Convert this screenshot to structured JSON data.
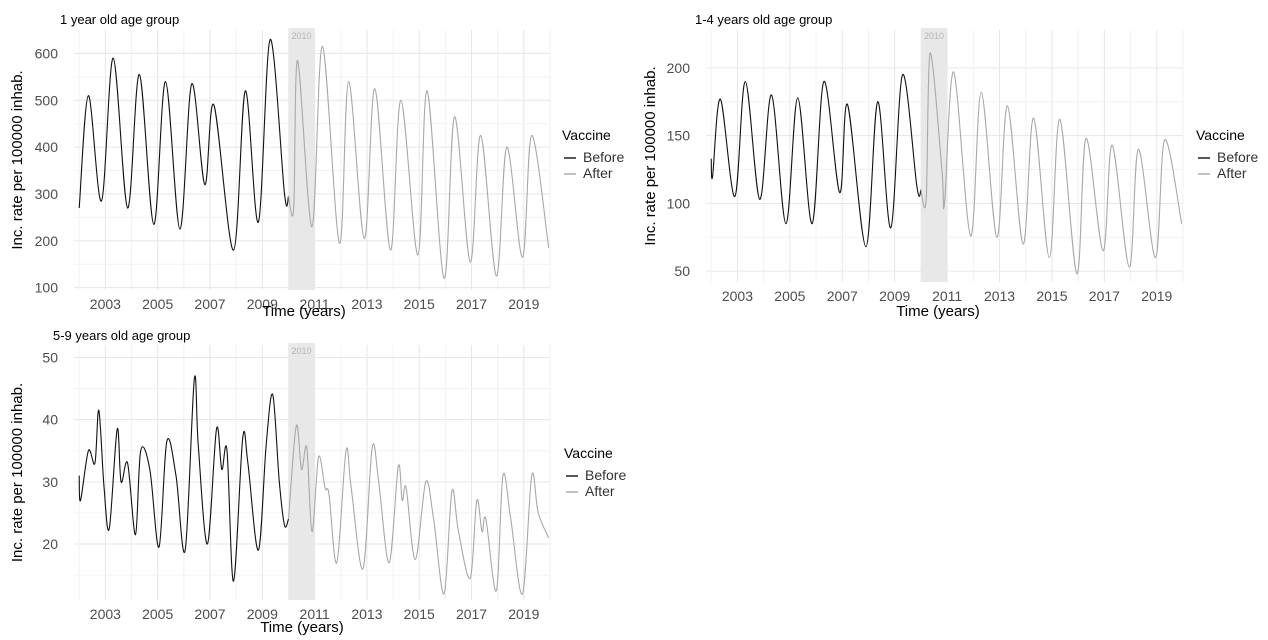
{
  "figure": {
    "panels": [
      {
        "title": "1 year old age group"
      },
      {
        "title": "1-4 years old age group"
      },
      {
        "title": "5-9 years old age group"
      }
    ]
  },
  "chart_data": [
    {
      "type": "line",
      "title": "1 year old age group",
      "xlabel": "Time (years)",
      "ylabel": "Inc. rate per 100000 inhab.",
      "x_ticks": [
        "2003",
        "2005",
        "2007",
        "2009",
        "2011",
        "2013",
        "2015",
        "2017",
        "2019"
      ],
      "y_ticks": [
        100,
        200,
        300,
        400,
        500,
        600
      ],
      "xlim": [
        2001.8,
        2020
      ],
      "ylim": [
        95,
        650
      ],
      "legend": {
        "title": "Vaccine",
        "entries": [
          "Before",
          "After"
        ],
        "position": "right"
      },
      "annotation": {
        "label": "2010",
        "x_from": 2010.0,
        "x_to": 2011.0
      },
      "grid": true,
      "series": [
        {
          "name": "Before",
          "color": "#111111",
          "peaks": [
            [
              2002,
              270
            ],
            [
              2002.35,
              510
            ],
            [
              2002.85,
              285
            ],
            [
              2003.3,
              590
            ],
            [
              2003.85,
              270
            ],
            [
              2004.3,
              555
            ],
            [
              2004.85,
              235
            ],
            [
              2005.3,
              540
            ],
            [
              2005.85,
              225
            ],
            [
              2006.3,
              535
            ],
            [
              2006.8,
              320
            ],
            [
              2007.15,
              490
            ],
            [
              2007.9,
              180
            ],
            [
              2008.35,
              520
            ],
            [
              2008.85,
              240
            ],
            [
              2009.3,
              630
            ],
            [
              2009.85,
              300
            ],
            [
              2010.0,
              295
            ]
          ]
        },
        {
          "name": "After",
          "color": "#a8a8a8",
          "peaks": [
            [
              2010.0,
              295
            ],
            [
              2010.2,
              270
            ],
            [
              2010.35,
              585
            ],
            [
              2010.9,
              230
            ],
            [
              2011.3,
              615
            ],
            [
              2011.95,
              195
            ],
            [
              2012.3,
              540
            ],
            [
              2012.9,
              205
            ],
            [
              2013.3,
              525
            ],
            [
              2013.9,
              180
            ],
            [
              2014.3,
              500
            ],
            [
              2014.95,
              170
            ],
            [
              2015.3,
              520
            ],
            [
              2015.95,
              120
            ],
            [
              2016.35,
              465
            ],
            [
              2016.95,
              155
            ],
            [
              2017.35,
              425
            ],
            [
              2017.95,
              125
            ],
            [
              2018.35,
              400
            ],
            [
              2018.95,
              165
            ],
            [
              2019.3,
              425
            ],
            [
              2019.95,
              185
            ]
          ]
        }
      ]
    },
    {
      "type": "line",
      "title": "1-4 years old age group",
      "xlabel": "Time (years)",
      "ylabel": "Inc. rate per 100000 inhab.",
      "x_ticks": [
        "2003",
        "2005",
        "2007",
        "2009",
        "2011",
        "2013",
        "2015",
        "2017",
        "2019"
      ],
      "y_ticks": [
        50,
        100,
        150,
        200
      ],
      "xlim": [
        2001.8,
        2020
      ],
      "ylim": [
        42,
        228
      ],
      "legend": {
        "title": "Vaccine",
        "entries": [
          "Before",
          "After"
        ],
        "position": "right"
      },
      "annotation": {
        "label": "2010",
        "x_from": 2010.0,
        "x_to": 2011.0
      },
      "grid": true,
      "series": [
        {
          "name": "Before",
          "color": "#111111",
          "peaks": [
            [
              2002,
              133
            ],
            [
              2002.05,
              120
            ],
            [
              2002.35,
              177
            ],
            [
              2002.9,
              105
            ],
            [
              2003.3,
              190
            ],
            [
              2003.85,
              103
            ],
            [
              2004.3,
              180
            ],
            [
              2004.85,
              85
            ],
            [
              2005.3,
              178
            ],
            [
              2005.85,
              85
            ],
            [
              2006.3,
              190
            ],
            [
              2006.9,
              108
            ],
            [
              2007.2,
              173
            ],
            [
              2007.9,
              68
            ],
            [
              2008.35,
              175
            ],
            [
              2008.85,
              82
            ],
            [
              2009.3,
              195
            ],
            [
              2009.85,
              112
            ],
            [
              2010.0,
              110
            ]
          ]
        },
        {
          "name": "After",
          "color": "#a8a8a8",
          "peaks": [
            [
              2010.0,
              110
            ],
            [
              2010.2,
              103
            ],
            [
              2010.35,
              211
            ],
            [
              2010.8,
              125
            ],
            [
              2010.9,
              100
            ],
            [
              2011.25,
              197
            ],
            [
              2011.9,
              76
            ],
            [
              2012.3,
              182
            ],
            [
              2012.9,
              75
            ],
            [
              2013.3,
              172
            ],
            [
              2013.9,
              70
            ],
            [
              2014.3,
              163
            ],
            [
              2014.9,
              60
            ],
            [
              2015.3,
              162
            ],
            [
              2015.95,
              48
            ],
            [
              2016.3,
              148
            ],
            [
              2016.95,
              65
            ],
            [
              2017.3,
              143
            ],
            [
              2017.95,
              53
            ],
            [
              2018.3,
              140
            ],
            [
              2018.95,
              60
            ],
            [
              2019.3,
              147
            ],
            [
              2019.95,
              85
            ]
          ]
        }
      ]
    },
    {
      "type": "line",
      "title": "5-9 years old age group",
      "xlabel": "Time (years)",
      "ylabel": "Inc. rate per 100000 inhab.",
      "x_ticks": [
        "2003",
        "2005",
        "2007",
        "2009",
        "2011",
        "2013",
        "2015",
        "2017",
        "2019"
      ],
      "y_ticks": [
        20,
        30,
        40,
        50
      ],
      "xlim": [
        2001.8,
        2020
      ],
      "ylim": [
        11,
        52
      ],
      "legend": {
        "title": "Vaccine",
        "entries": [
          "Before",
          "After"
        ],
        "position": "right"
      },
      "annotation": {
        "label": "2010",
        "x_from": 2010.0,
        "x_to": 2011.0
      },
      "grid": true,
      "series": [
        {
          "name": "Before",
          "color": "#111111",
          "peaks": [
            [
              2002,
              31
            ],
            [
              2002.05,
              27
            ],
            [
              2002.35,
              35
            ],
            [
              2002.6,
              33
            ],
            [
              2002.75,
              41.5
            ],
            [
              2002.95,
              29
            ],
            [
              2003.15,
              22.5
            ],
            [
              2003.45,
              38.5
            ],
            [
              2003.6,
              30
            ],
            [
              2003.85,
              33
            ],
            [
              2004.15,
              21.5
            ],
            [
              2004.35,
              35
            ],
            [
              2004.7,
              32
            ],
            [
              2005.05,
              19.5
            ],
            [
              2005.35,
              36.5
            ],
            [
              2005.7,
              31
            ],
            [
              2006.05,
              19
            ],
            [
              2006.4,
              46.5
            ],
            [
              2006.55,
              36
            ],
            [
              2006.9,
              20
            ],
            [
              2007.25,
              38.5
            ],
            [
              2007.45,
              32
            ],
            [
              2007.65,
              35
            ],
            [
              2007.9,
              14
            ],
            [
              2008.25,
              37
            ],
            [
              2008.45,
              33
            ],
            [
              2008.85,
              19
            ],
            [
              2009.15,
              36
            ],
            [
              2009.4,
              44
            ],
            [
              2009.65,
              30
            ],
            [
              2009.85,
              23
            ],
            [
              2010.0,
              24
            ]
          ]
        },
        {
          "name": "After",
          "color": "#a8a8a8",
          "peaks": [
            [
              2010.0,
              24
            ],
            [
              2010.3,
              39
            ],
            [
              2010.5,
              32
            ],
            [
              2010.7,
              35.5
            ],
            [
              2010.9,
              22
            ],
            [
              2011.15,
              34
            ],
            [
              2011.4,
              29
            ],
            [
              2011.55,
              28
            ],
            [
              2011.85,
              17
            ],
            [
              2012.2,
              35
            ],
            [
              2012.4,
              29
            ],
            [
              2012.85,
              16
            ],
            [
              2013.2,
              35.5
            ],
            [
              2013.45,
              30
            ],
            [
              2013.85,
              17
            ],
            [
              2014.2,
              32.5
            ],
            [
              2014.35,
              27
            ],
            [
              2014.5,
              29
            ],
            [
              2014.85,
              17.5
            ],
            [
              2015.25,
              30
            ],
            [
              2015.55,
              24
            ],
            [
              2015.95,
              12
            ],
            [
              2016.25,
              28.5
            ],
            [
              2016.5,
              22
            ],
            [
              2016.95,
              14.5
            ],
            [
              2017.2,
              27
            ],
            [
              2017.4,
              22
            ],
            [
              2017.55,
              24
            ],
            [
              2017.95,
              12.5
            ],
            [
              2018.2,
              31
            ],
            [
              2018.5,
              24
            ],
            [
              2018.95,
              12
            ],
            [
              2019.3,
              31
            ],
            [
              2019.55,
              25
            ],
            [
              2019.95,
              21
            ]
          ]
        }
      ]
    }
  ]
}
